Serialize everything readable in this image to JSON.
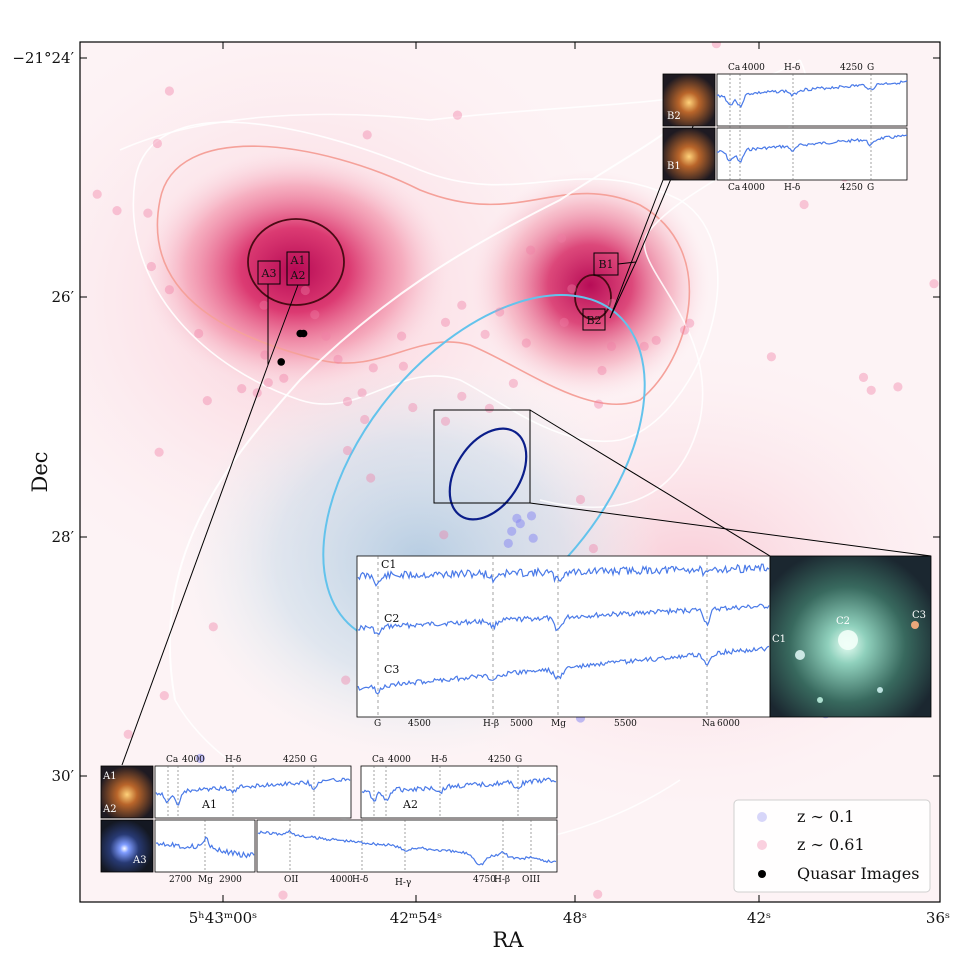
{
  "chart_data": {
    "type": "scatter",
    "xlabel": "RA",
    "ylabel": "Dec",
    "x_ticks": [
      {
        "label": "5ʰ43ᵐ",
        "sec": "00ˢ"
      },
      {
        "label": "42ᵐ",
        "sec": "54ˢ"
      },
      {
        "label": "",
        "sec": "48ˢ"
      },
      {
        "label": "",
        "sec": "42ˢ"
      },
      {
        "label": "",
        "sec": "36ˢ"
      }
    ],
    "y_ticks": [
      "−21°24′",
      "26′",
      "28′",
      "30′"
    ],
    "legend": [
      {
        "label": "z ∼ 0.1",
        "color": "#8c8cf0"
      },
      {
        "label": "z ∼ 0.61",
        "color": "#f07ca6"
      },
      {
        "label": "Quasar Images",
        "color": "#000000"
      }
    ],
    "series": [
      {
        "name": "z ~ 0.1",
        "points": [
          [
            50.8,
            44.6
          ],
          [
            52.5,
            44.9
          ],
          [
            51.2,
            44.0
          ],
          [
            52.7,
            42.3
          ],
          [
            50.2,
            43.1
          ],
          [
            49.8,
            41.7
          ],
          [
            54.2,
            38.3
          ],
          [
            50.2,
            38.2
          ],
          [
            58.2,
            21.4
          ],
          [
            64.9,
            31.0
          ],
          [
            54.1,
            12.3
          ],
          [
            50.4,
            28.7
          ],
          [
            14.0,
            16.7
          ],
          [
            86.7,
            21.9
          ]
        ]
      },
      {
        "name": "z ~ 0.61",
        "points": [
          [
            20.6,
            59.2
          ],
          [
            18.8,
            59.7
          ],
          [
            21.9,
            60.4
          ],
          [
            21.5,
            63.6
          ],
          [
            23.7,
            60.9
          ],
          [
            28.6,
            65.8
          ],
          [
            30.0,
            63.1
          ],
          [
            34.1,
            62.1
          ],
          [
            37.6,
            62.3
          ],
          [
            37.4,
            65.8
          ],
          [
            32.8,
            59.2
          ],
          [
            38.7,
            57.5
          ],
          [
            42.5,
            55.9
          ],
          [
            42.5,
            67.4
          ],
          [
            27.3,
            68.3
          ],
          [
            21.4,
            69.4
          ],
          [
            26.2,
            71.1
          ],
          [
            44.4,
            69.4
          ],
          [
            48.8,
            68.6
          ],
          [
            56.3,
            67.4
          ],
          [
            60.7,
            61.8
          ],
          [
            60.3,
            57.9
          ],
          [
            61.8,
            64.6
          ],
          [
            65.6,
            64.6
          ],
          [
            70.3,
            66.5
          ],
          [
            61.9,
            69.6
          ],
          [
            57.2,
            71.3
          ],
          [
            51.9,
            65.0
          ],
          [
            50.4,
            60.3
          ],
          [
            47.6,
            57.4
          ],
          [
            44.4,
            58.8
          ],
          [
            33.8,
            49.3
          ],
          [
            33.1,
            56.1
          ],
          [
            31.1,
            58.2
          ],
          [
            31.1,
            52.5
          ],
          [
            9.2,
            52.3
          ],
          [
            14.8,
            58.3
          ],
          [
            8.3,
            73.9
          ],
          [
            7.9,
            80.1
          ],
          [
            4.3,
            80.4
          ],
          [
            2.0,
            82.3
          ],
          [
            9.0,
            88.2
          ],
          [
            10.4,
            94.3
          ],
          [
            33.4,
            89.2
          ],
          [
            43.9,
            91.5
          ],
          [
            56.0,
            77.2
          ],
          [
            52.4,
            75.8
          ],
          [
            59.7,
            41.1
          ],
          [
            72.6,
            37.9
          ],
          [
            70.9,
            67.3
          ],
          [
            84.2,
            81.1
          ],
          [
            80.4,
            63.4
          ],
          [
            91.1,
            61.0
          ],
          [
            99.3,
            71.9
          ],
          [
            72.4,
            94.6
          ],
          [
            74.0,
            99.8
          ],
          [
            59.0,
            35.1
          ],
          [
            49.4,
            12.8
          ],
          [
            55.9,
            31.8
          ],
          [
            68.3,
            28.0
          ],
          [
            35.0,
            25.7
          ],
          [
            15.5,
            32.0
          ],
          [
            9.8,
            24.0
          ],
          [
            23.6,
            0.8
          ],
          [
            60.2,
            0.9
          ],
          [
            30.9,
            25.8
          ],
          [
            5.6,
            19.5
          ],
          [
            92.0,
            59.5
          ],
          [
            95.1,
            59.9
          ],
          [
            67.0,
            65.3
          ],
          [
            47.1,
            66.0
          ],
          [
            42.3,
            42.7
          ],
          [
            50.5,
            29.7
          ],
          [
            58.2,
            46.8
          ],
          [
            88.9,
            84.3
          ],
          [
            13.8,
            66.1
          ],
          [
            10.4,
            71.2
          ]
        ]
      },
      {
        "name": "Quasar Images",
        "points": [
          [
            25.6,
            66.1
          ],
          [
            26.0,
            66.1
          ],
          [
            23.4,
            62.8
          ]
        ]
      }
    ],
    "spectra_labels": {
      "B2": [
        "Ca",
        "4000",
        "H-δ",
        "4250",
        "G"
      ],
      "B1": [
        "Ca",
        "4000",
        "H-δ",
        "4250",
        "G"
      ],
      "C": [
        "G",
        "4500",
        "H-β",
        "5000",
        "Mg",
        "5500",
        "Na",
        "6000"
      ],
      "A1": [
        "Ca",
        "4000",
        "H-δ",
        "4250",
        "G"
      ],
      "A2": [
        "Ca",
        "4000",
        "H-δ",
        "4250",
        "G"
      ],
      "A3a": [
        "2700",
        "Mg",
        "2900"
      ],
      "A3b": [
        "OII",
        "4000",
        "H-δ",
        "H-γ",
        "4750",
        "H-β",
        "OIII"
      ]
    },
    "cutout_labels": [
      "B2",
      "B1",
      "C1",
      "C2",
      "C3",
      "A1",
      "A2",
      "A3"
    ],
    "box_labels": [
      "A1",
      "A2",
      "A3",
      "B1",
      "B2"
    ],
    "spectrum_names": [
      "C1",
      "C2",
      "C3",
      "A1",
      "A2"
    ]
  }
}
